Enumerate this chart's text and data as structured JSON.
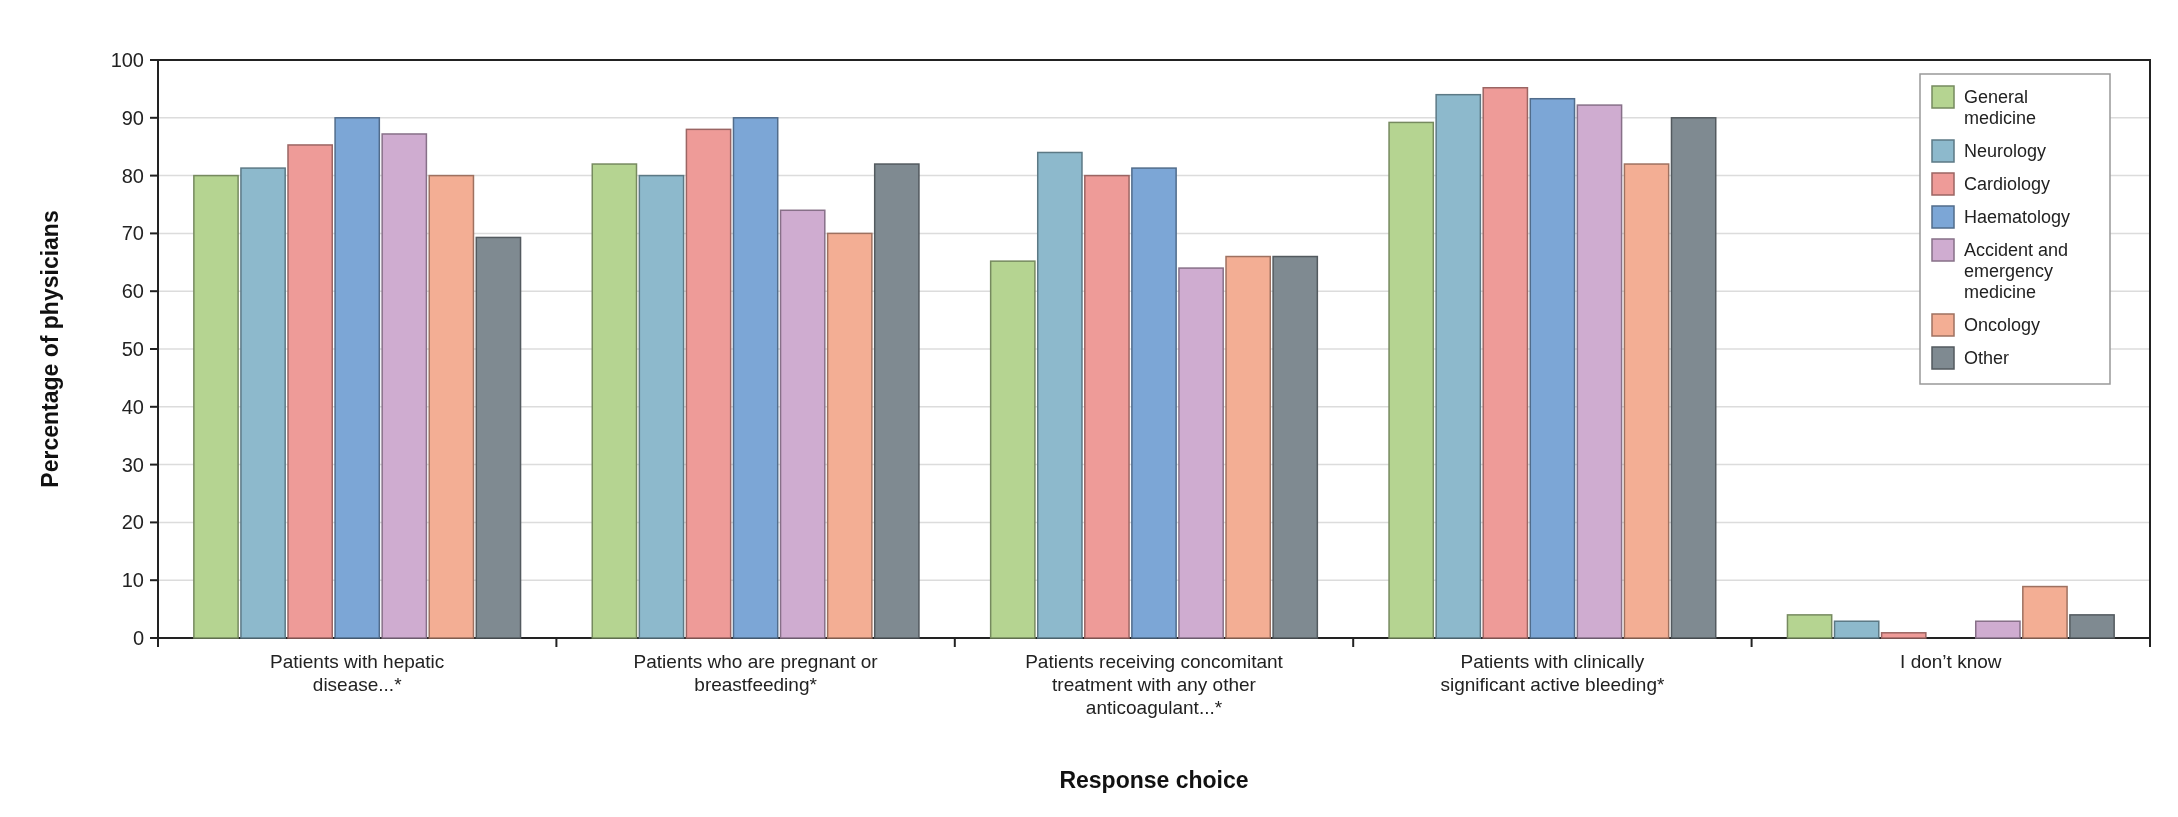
{
  "chart_data": {
    "type": "bar",
    "xlabel": "Response choice",
    "ylabel": "Percentage of physicians",
    "categories": [
      "Patients with hepatic disease...*",
      "Patients who are pregnant or breastfeeding*",
      "Patients receiving concomitant treatment with any other anticoagulant...*",
      "Patients with clinically significant active bleeding*",
      "I don’t know"
    ],
    "series": [
      {
        "name": "General medicine",
        "color": "#b5d491",
        "values": [
          80,
          82,
          65.2,
          89.2,
          4
        ]
      },
      {
        "name": "Neurology",
        "color": "#8db9cc",
        "values": [
          81.3,
          80,
          84,
          94,
          2.9
        ]
      },
      {
        "name": "Cardiology",
        "color": "#ee9b98",
        "values": [
          85.3,
          88,
          80,
          95.2,
          0.9
        ]
      },
      {
        "name": "Haematology",
        "color": "#7ca6d6",
        "values": [
          90,
          90,
          81.3,
          93.3,
          null
        ]
      },
      {
        "name": "Accident and emergency medicine",
        "color": "#cfacd0",
        "values": [
          87.2,
          74,
          64,
          92.2,
          2.9
        ]
      },
      {
        "name": "Oncology",
        "color": "#f3ae94",
        "values": [
          80,
          70,
          66,
          82,
          8.9
        ]
      },
      {
        "name": "Other",
        "color": "#7f8a91",
        "values": [
          69.3,
          82,
          66,
          90,
          4
        ]
      }
    ],
    "ylim": [
      0,
      100
    ],
    "yticks": [
      0,
      10,
      20,
      30,
      40,
      50,
      60,
      70,
      80,
      90,
      100
    ],
    "grid": "y",
    "legend": "top right"
  }
}
